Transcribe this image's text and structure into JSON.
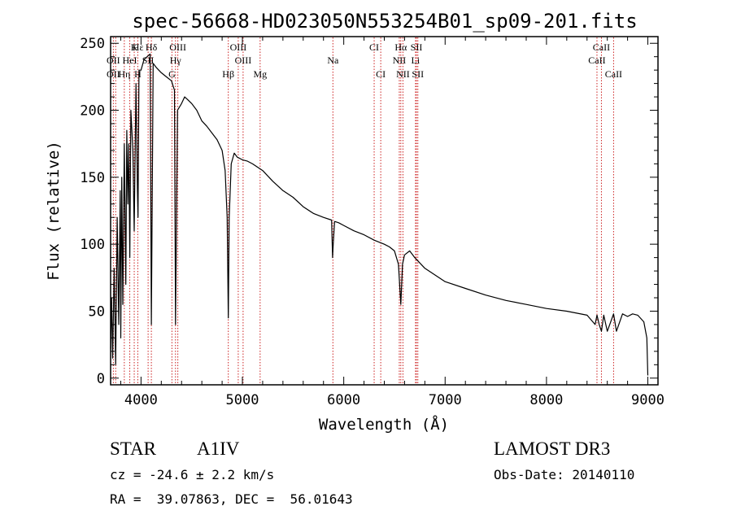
{
  "chart_data": {
    "type": "line",
    "title": "spec-56668-HD023050N553254B01_sp09-201.fits",
    "xlabel": "Wavelength (Å)",
    "ylabel": "Flux (relative)",
    "xlim": [
      3700,
      9100
    ],
    "ylim": [
      -5,
      255
    ],
    "xticks": [
      4000,
      5000,
      6000,
      7000,
      8000,
      9000
    ],
    "yticks": [
      0,
      50,
      100,
      150,
      200,
      250
    ],
    "grid": false,
    "series": [
      {
        "name": "Flux",
        "x": [
          3700,
          3710,
          3720,
          3735,
          3750,
          3765,
          3780,
          3795,
          3800,
          3810,
          3820,
          3835,
          3850,
          3860,
          3870,
          3880,
          3889,
          3900,
          3920,
          3933,
          3950,
          3965,
          3970,
          3980,
          4000,
          4030,
          4060,
          4090,
          4102,
          4120,
          4150,
          4200,
          4250,
          4300,
          4330,
          4340,
          4360,
          4400,
          4430,
          4460,
          4500,
          4550,
          4600,
          4650,
          4700,
          4750,
          4800,
          4830,
          4850,
          4861,
          4870,
          4890,
          4920,
          4950,
          5000,
          5050,
          5100,
          5200,
          5300,
          5400,
          5500,
          5600,
          5700,
          5800,
          5880,
          5890,
          5896,
          5910,
          5950,
          6000,
          6100,
          6200,
          6300,
          6400,
          6450,
          6500,
          6540,
          6563,
          6580,
          6600,
          6650,
          6700,
          6800,
          7000,
          7200,
          7400,
          7600,
          7800,
          8000,
          8200,
          8400,
          8480,
          8498,
          8520,
          8542,
          8565,
          8600,
          8662,
          8690,
          8750,
          8800,
          8850,
          8900,
          8960,
          8990,
          9000
        ],
        "values": [
          22,
          60,
          15,
          82,
          10,
          120,
          40,
          140,
          30,
          150,
          55,
          175,
          70,
          185,
          130,
          175,
          90,
          200,
          170,
          110,
          220,
          140,
          120,
          230,
          230,
          238,
          240,
          242,
          40,
          235,
          232,
          228,
          225,
          222,
          215,
          40,
          200,
          205,
          210,
          208,
          205,
          200,
          192,
          188,
          183,
          178,
          170,
          155,
          120,
          45,
          120,
          160,
          168,
          165,
          163,
          162,
          160,
          155,
          147,
          140,
          135,
          128,
          123,
          120,
          118,
          90,
          100,
          117,
          116,
          114,
          110,
          107,
          103,
          100,
          98,
          95,
          85,
          55,
          85,
          92,
          95,
          90,
          82,
          72,
          67,
          62,
          58,
          55,
          52,
          50,
          47,
          40,
          47,
          40,
          35,
          47,
          35,
          48,
          35,
          48,
          46,
          48,
          47,
          42,
          30,
          2
        ]
      }
    ],
    "line_labels": [
      {
        "name": "Hδ",
        "wave": 4102,
        "row": 1
      },
      {
        "name": "K",
        "wave": 3933,
        "row": 1
      },
      {
        "name": "Hε",
        "wave": 3970,
        "row": 1
      },
      {
        "name": "OIII",
        "wave": 4363,
        "row": 1
      },
      {
        "name": "OIII",
        "wave": 4959,
        "row": 1
      },
      {
        "name": "CI",
        "wave": 6300,
        "row": 1
      },
      {
        "name": "Hα",
        "wave": 6563,
        "row": 1
      },
      {
        "name": "SII",
        "wave": 6717,
        "row": 1
      },
      {
        "name": "CaII",
        "wave": 8542,
        "row": 1
      },
      {
        "name": "OII",
        "wave": 3727,
        "row": 2
      },
      {
        "name": "HeI",
        "wave": 3889,
        "row": 2
      },
      {
        "name": "SII",
        "wave": 4070,
        "row": 2
      },
      {
        "name": "Hγ",
        "wave": 4340,
        "row": 2
      },
      {
        "name": "OIII",
        "wave": 5007,
        "row": 2
      },
      {
        "name": "Na",
        "wave": 5893,
        "row": 2
      },
      {
        "name": "NII",
        "wave": 6548,
        "row": 2
      },
      {
        "name": "Li",
        "wave": 6708,
        "row": 2
      },
      {
        "name": "CaII",
        "wave": 8498,
        "row": 2
      },
      {
        "name": "OII",
        "wave": 3727,
        "row": 3
      },
      {
        "name": "Hη",
        "wave": 3835,
        "row": 3
      },
      {
        "name": "H",
        "wave": 3968,
        "row": 3
      },
      {
        "name": "G",
        "wave": 4305,
        "row": 3
      },
      {
        "name": "Hβ",
        "wave": 4861,
        "row": 3
      },
      {
        "name": "Mg",
        "wave": 5175,
        "row": 3
      },
      {
        "name": "CI",
        "wave": 6365,
        "row": 3
      },
      {
        "name": "NII",
        "wave": 6584,
        "row": 3
      },
      {
        "name": "SII",
        "wave": 6731,
        "row": 3
      },
      {
        "name": "CaII",
        "wave": 8662,
        "row": 3
      }
    ],
    "line_markers": [
      3727,
      3750,
      3835,
      3889,
      3933,
      3968,
      4070,
      4102,
      4305,
      4340,
      4363,
      4861,
      4959,
      5007,
      5175,
      5893,
      6300,
      6365,
      6548,
      6563,
      6584,
      6708,
      6717,
      6731,
      8498,
      8542,
      8662
    ]
  },
  "info": {
    "object_type": "STAR",
    "spectral_class": "A1IV",
    "survey": "LAMOST DR3",
    "cz": "cz = -24.6 ± 2.2 km/s",
    "obs_date": "Obs-Date: 20140110",
    "coords": "RA =  39.07863, DEC =  56.01643"
  }
}
